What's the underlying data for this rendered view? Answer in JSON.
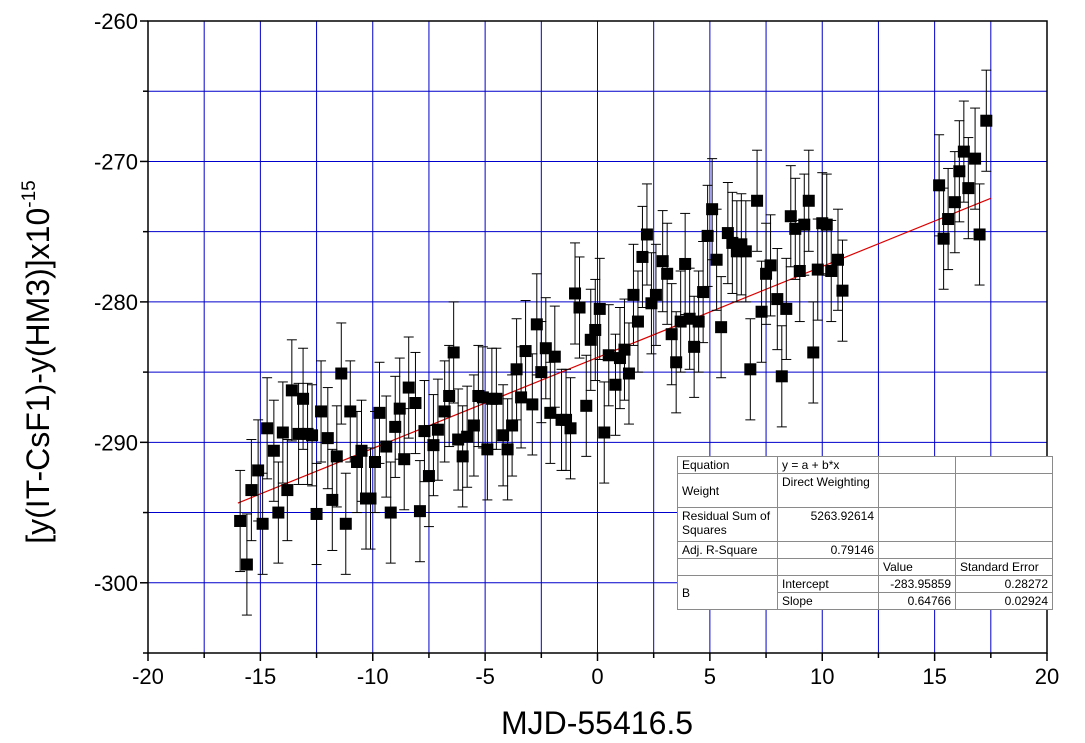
{
  "chart_data": {
    "type": "scatter",
    "xlabel": "MJD-55416.5",
    "ylabel": "[y(IT-CsF1)-y(HM3)]x10",
    "ylabel_exponent": "-15",
    "xlim": [
      -20,
      20
    ],
    "ylim": [
      -305,
      -260
    ],
    "xticks": [
      -20,
      -15,
      -10,
      -5,
      0,
      5,
      10,
      15,
      20
    ],
    "yticks": [
      -300,
      -290,
      -280,
      -270,
      -260
    ],
    "grid": true,
    "colors": {
      "points": "#000000",
      "grid": "#0000cc",
      "fit_line": "#dd0000"
    },
    "series": [
      {
        "marker": "filled-square",
        "points": [
          {
            "x": -15.9,
            "y": -295.6,
            "err": 3.6
          },
          {
            "x": -15.6,
            "y": -298.7,
            "err": 3.6
          },
          {
            "x": -15.4,
            "y": -293.4,
            "err": 3.6
          },
          {
            "x": -15.1,
            "y": -292.0,
            "err": 3.6
          },
          {
            "x": -14.9,
            "y": -295.8,
            "err": 3.6
          },
          {
            "x": -14.7,
            "y": -289.0,
            "err": 3.6
          },
          {
            "x": -14.4,
            "y": -290.6,
            "err": 3.6
          },
          {
            "x": -14.2,
            "y": -295.0,
            "err": 3.6
          },
          {
            "x": -14.0,
            "y": -289.3,
            "err": 3.6
          },
          {
            "x": -13.8,
            "y": -293.4,
            "err": 3.6
          },
          {
            "x": -13.6,
            "y": -286.3,
            "err": 3.6
          },
          {
            "x": -13.3,
            "y": -289.4,
            "err": 3.6
          },
          {
            "x": -13.1,
            "y": -286.9,
            "err": 3.6
          },
          {
            "x": -12.9,
            "y": -289.4,
            "err": 3.6
          },
          {
            "x": -12.7,
            "y": -289.5,
            "err": 3.6
          },
          {
            "x": -12.5,
            "y": -295.1,
            "err": 3.6
          },
          {
            "x": -12.3,
            "y": -287.8,
            "err": 3.6
          },
          {
            "x": -12.0,
            "y": -289.7,
            "err": 3.6
          },
          {
            "x": -11.8,
            "y": -294.1,
            "err": 3.6
          },
          {
            "x": -11.6,
            "y": -291.0,
            "err": 3.6
          },
          {
            "x": -11.4,
            "y": -285.1,
            "err": 3.6
          },
          {
            "x": -11.2,
            "y": -295.8,
            "err": 3.6
          },
          {
            "x": -11.0,
            "y": -287.8,
            "err": 3.6
          },
          {
            "x": -10.7,
            "y": -291.4,
            "err": 3.6
          },
          {
            "x": -10.5,
            "y": -290.6,
            "err": 3.6
          },
          {
            "x": -10.3,
            "y": -294.0,
            "err": 3.6
          },
          {
            "x": -10.1,
            "y": -294.0,
            "err": 3.6
          },
          {
            "x": -9.9,
            "y": -291.4,
            "err": 3.6
          },
          {
            "x": -9.7,
            "y": -287.9,
            "err": 3.6
          },
          {
            "x": -9.4,
            "y": -290.3,
            "err": 3.6
          },
          {
            "x": -9.2,
            "y": -295.0,
            "err": 3.6
          },
          {
            "x": -9.0,
            "y": -288.9,
            "err": 3.6
          },
          {
            "x": -8.8,
            "y": -287.6,
            "err": 3.6
          },
          {
            "x": -8.6,
            "y": -291.2,
            "err": 3.6
          },
          {
            "x": -8.4,
            "y": -286.1,
            "err": 3.6
          },
          {
            "x": -8.1,
            "y": -287.2,
            "err": 3.6
          },
          {
            "x": -7.9,
            "y": -294.9,
            "err": 3.6
          },
          {
            "x": -7.7,
            "y": -289.2,
            "err": 3.6
          },
          {
            "x": -7.5,
            "y": -292.4,
            "err": 3.6
          },
          {
            "x": -7.3,
            "y": -290.2,
            "err": 3.6
          },
          {
            "x": -7.1,
            "y": -289.1,
            "err": 3.6
          },
          {
            "x": -6.8,
            "y": -287.8,
            "err": 3.6
          },
          {
            "x": -6.6,
            "y": -286.7,
            "err": 3.6
          },
          {
            "x": -6.4,
            "y": -283.6,
            "err": 3.6
          },
          {
            "x": -6.2,
            "y": -289.8,
            "err": 3.6
          },
          {
            "x": -6.0,
            "y": -291.0,
            "err": 3.6
          },
          {
            "x": -5.8,
            "y": -289.6,
            "err": 3.6
          },
          {
            "x": -5.5,
            "y": -288.8,
            "err": 3.6
          },
          {
            "x": -5.3,
            "y": -286.7,
            "err": 3.6
          },
          {
            "x": -5.1,
            "y": -286.8,
            "err": 3.6
          },
          {
            "x": -4.9,
            "y": -290.5,
            "err": 3.6
          },
          {
            "x": -4.7,
            "y": -286.9,
            "err": 3.6
          },
          {
            "x": -4.5,
            "y": -286.9,
            "err": 3.6
          },
          {
            "x": -4.2,
            "y": -289.5,
            "err": 3.6
          },
          {
            "x": -4.0,
            "y": -290.5,
            "err": 3.6
          },
          {
            "x": -3.8,
            "y": -288.8,
            "err": 3.6
          },
          {
            "x": -3.6,
            "y": -284.8,
            "err": 3.6
          },
          {
            "x": -3.4,
            "y": -286.8,
            "err": 3.6
          },
          {
            "x": -3.2,
            "y": -283.5,
            "err": 3.6
          },
          {
            "x": -2.9,
            "y": -287.3,
            "err": 3.6
          },
          {
            "x": -2.7,
            "y": -281.6,
            "err": 3.6
          },
          {
            "x": -2.5,
            "y": -285.0,
            "err": 3.6
          },
          {
            "x": -2.3,
            "y": -283.3,
            "err": 3.6
          },
          {
            "x": -2.1,
            "y": -287.9,
            "err": 3.6
          },
          {
            "x": -1.9,
            "y": -283.9,
            "err": 3.6
          },
          {
            "x": -1.6,
            "y": -288.4,
            "err": 3.6
          },
          {
            "x": -1.4,
            "y": -288.4,
            "err": 3.6
          },
          {
            "x": -1.2,
            "y": -289.0,
            "err": 3.6
          },
          {
            "x": -1.0,
            "y": -279.4,
            "err": 3.6
          },
          {
            "x": -0.8,
            "y": -280.4,
            "err": 3.6
          },
          {
            "x": -0.5,
            "y": -287.4,
            "err": 3.6
          },
          {
            "x": -0.3,
            "y": -282.7,
            "err": 3.6
          },
          {
            "x": -0.1,
            "y": -282.0,
            "err": 3.6
          },
          {
            "x": 0.1,
            "y": -280.5,
            "err": 3.6
          },
          {
            "x": 0.3,
            "y": -289.3,
            "err": 3.6
          },
          {
            "x": 0.5,
            "y": -283.8,
            "err": 3.6
          },
          {
            "x": 0.8,
            "y": -285.9,
            "err": 3.6
          },
          {
            "x": 1.0,
            "y": -284.0,
            "err": 3.6
          },
          {
            "x": 1.2,
            "y": -283.4,
            "err": 3.6
          },
          {
            "x": 1.4,
            "y": -285.1,
            "err": 3.6
          },
          {
            "x": 1.6,
            "y": -279.5,
            "err": 3.6
          },
          {
            "x": 1.8,
            "y": -281.4,
            "err": 3.6
          },
          {
            "x": 2.0,
            "y": -276.8,
            "err": 3.6
          },
          {
            "x": 2.2,
            "y": -275.2,
            "err": 3.6
          },
          {
            "x": 2.4,
            "y": -280.1,
            "err": 3.6
          },
          {
            "x": 2.6,
            "y": -279.5,
            "err": 3.6
          },
          {
            "x": 2.9,
            "y": -277.1,
            "err": 3.6
          },
          {
            "x": 3.1,
            "y": -278.0,
            "err": 3.6
          },
          {
            "x": 3.3,
            "y": -282.3,
            "err": 3.6
          },
          {
            "x": 3.5,
            "y": -284.3,
            "err": 3.6
          },
          {
            "x": 3.7,
            "y": -281.4,
            "err": 3.6
          },
          {
            "x": 3.9,
            "y": -277.3,
            "err": 3.6
          },
          {
            "x": 4.1,
            "y": -281.2,
            "err": 3.6
          },
          {
            "x": 4.3,
            "y": -283.2,
            "err": 3.6
          },
          {
            "x": 4.5,
            "y": -281.4,
            "err": 3.6
          },
          {
            "x": 4.7,
            "y": -279.3,
            "err": 3.6
          },
          {
            "x": 4.9,
            "y": -275.3,
            "err": 3.6
          },
          {
            "x": 5.1,
            "y": -273.4,
            "err": 3.6
          },
          {
            "x": 5.3,
            "y": -277.0,
            "err": 3.6
          },
          {
            "x": 5.5,
            "y": -281.8,
            "err": 3.6
          },
          {
            "x": 5.8,
            "y": -275.1,
            "err": 3.6
          },
          {
            "x": 6.0,
            "y": -275.8,
            "err": 3.6
          },
          {
            "x": 6.2,
            "y": -276.4,
            "err": 3.6
          },
          {
            "x": 6.4,
            "y": -275.9,
            "err": 3.6
          },
          {
            "x": 6.6,
            "y": -276.4,
            "err": 3.6
          },
          {
            "x": 6.8,
            "y": -284.8,
            "err": 3.6
          },
          {
            "x": 7.1,
            "y": -272.8,
            "err": 3.6
          },
          {
            "x": 7.3,
            "y": -280.7,
            "err": 3.6
          },
          {
            "x": 7.5,
            "y": -278.0,
            "err": 3.6
          },
          {
            "x": 7.7,
            "y": -277.4,
            "err": 3.6
          },
          {
            "x": 8.0,
            "y": -279.8,
            "err": 3.6
          },
          {
            "x": 8.2,
            "y": -285.3,
            "err": 3.6
          },
          {
            "x": 8.4,
            "y": -280.5,
            "err": 3.6
          },
          {
            "x": 8.6,
            "y": -273.9,
            "err": 3.6
          },
          {
            "x": 8.8,
            "y": -274.8,
            "err": 3.6
          },
          {
            "x": 9.0,
            "y": -277.8,
            "err": 3.6
          },
          {
            "x": 9.2,
            "y": -274.5,
            "err": 3.6
          },
          {
            "x": 9.4,
            "y": -272.8,
            "err": 3.6
          },
          {
            "x": 9.6,
            "y": -283.6,
            "err": 3.6
          },
          {
            "x": 9.8,
            "y": -277.7,
            "err": 3.6
          },
          {
            "x": 10.0,
            "y": -274.4,
            "err": 3.6
          },
          {
            "x": 10.2,
            "y": -274.5,
            "err": 3.6
          },
          {
            "x": 10.4,
            "y": -277.8,
            "err": 3.6
          },
          {
            "x": 10.7,
            "y": -277.0,
            "err": 3.6
          },
          {
            "x": 10.9,
            "y": -279.2,
            "err": 3.6
          },
          {
            "x": 15.2,
            "y": -271.7,
            "err": 3.6
          },
          {
            "x": 15.4,
            "y": -275.5,
            "err": 3.6
          },
          {
            "x": 15.6,
            "y": -274.1,
            "err": 3.6
          },
          {
            "x": 15.9,
            "y": -272.9,
            "err": 3.6
          },
          {
            "x": 16.1,
            "y": -270.7,
            "err": 3.6
          },
          {
            "x": 16.3,
            "y": -269.3,
            "err": 3.6
          },
          {
            "x": 16.5,
            "y": -271.9,
            "err": 3.6
          },
          {
            "x": 16.8,
            "y": -269.8,
            "err": 3.6
          },
          {
            "x": 17.0,
            "y": -275.2,
            "err": 3.6
          },
          {
            "x": 17.3,
            "y": -267.1,
            "err": 3.6
          }
        ]
      }
    ],
    "fit": {
      "intercept": -283.95859,
      "slope": 0.64766,
      "x_range": [
        -16,
        17.5
      ]
    }
  },
  "fit_table": {
    "equation_label": "Equation",
    "equation": "y = a + b*x",
    "weight_label": "Weight",
    "weight": "Direct Weighting",
    "rss_label": "Residual Sum of Squares",
    "rss": "5263.92614",
    "r2_label": "Adj. R-Square",
    "r2": "0.79146",
    "value_header": "Value",
    "stderr_header": "Standard Error",
    "param_label": "B",
    "intercept_label": "Intercept",
    "intercept_value": "-283.95859",
    "intercept_err": "0.28272",
    "slope_label": "Slope",
    "slope_value": "0.64766",
    "slope_err": "0.02924"
  }
}
